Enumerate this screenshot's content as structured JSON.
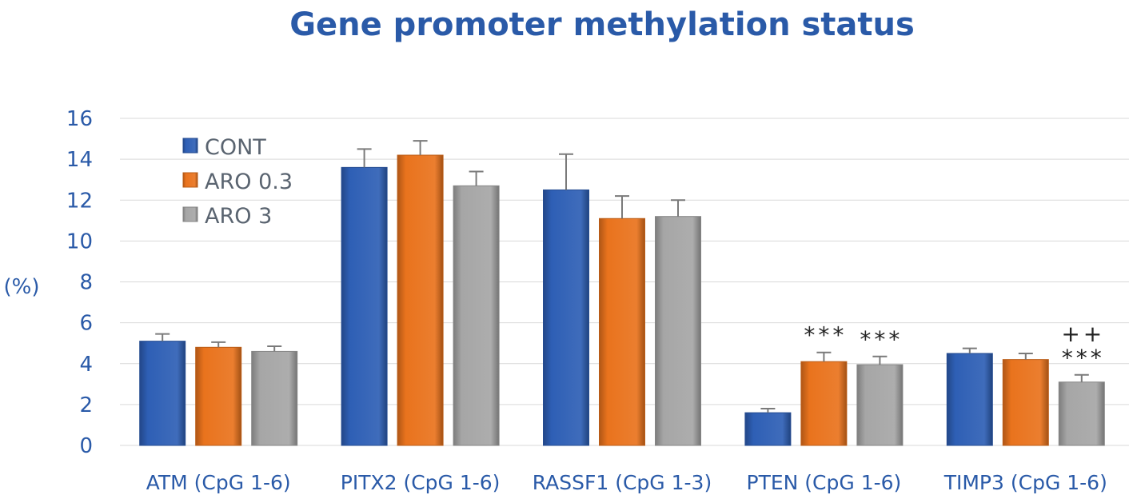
{
  "chart_data": {
    "type": "bar",
    "title": "Gene promoter methylation status",
    "ylabel": "(%)",
    "xlabel": "",
    "ylim": [
      0,
      16
    ],
    "yticks": [
      0,
      2,
      4,
      6,
      8,
      10,
      12,
      14,
      16
    ],
    "grid": true,
    "legend_position": "top-left",
    "categories": [
      "ATM (CpG 1-6)",
      "PITX2 (CpG 1-6)",
      "RASSF1 (CpG 1-3)",
      "PTEN (CpG 1-6)",
      "TIMP3 (CpG 1-6)"
    ],
    "series": [
      {
        "name": "CONT",
        "color": "#2e5fb5",
        "values": [
          5.1,
          13.6,
          12.5,
          1.6,
          4.5
        ],
        "errors": [
          0.35,
          0.9,
          1.75,
          0.2,
          0.25
        ]
      },
      {
        "name": "ARO 0.3",
        "color": "#e9731d",
        "values": [
          4.8,
          14.2,
          11.1,
          4.1,
          4.2
        ],
        "errors": [
          0.25,
          0.7,
          1.1,
          0.45,
          0.3
        ]
      },
      {
        "name": "ARO 3",
        "color": "#a6a6a6",
        "values": [
          4.6,
          12.7,
          11.2,
          3.95,
          3.1
        ],
        "errors": [
          0.25,
          0.7,
          0.8,
          0.4,
          0.35
        ]
      }
    ],
    "annotations": [
      {
        "category": 3,
        "series": 1,
        "lines": [
          "***"
        ]
      },
      {
        "category": 3,
        "series": 2,
        "lines": [
          "***"
        ]
      },
      {
        "category": 4,
        "series": 2,
        "lines": [
          "++",
          "***"
        ]
      }
    ]
  }
}
